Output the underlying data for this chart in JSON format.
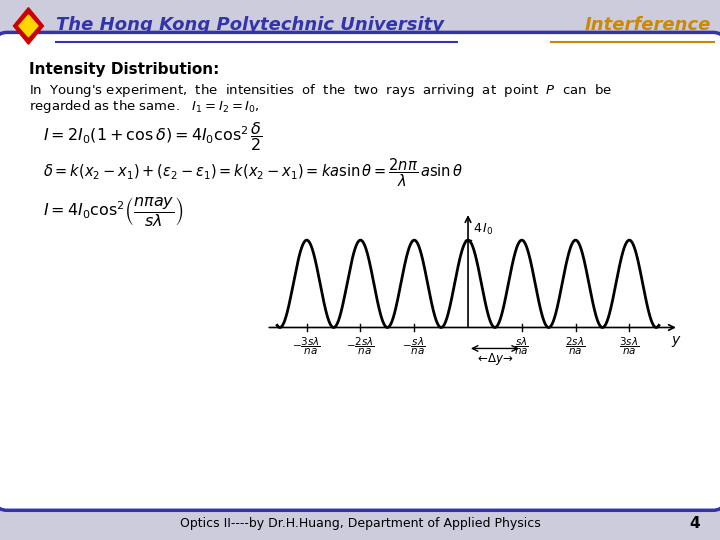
{
  "title_left": "The Hong Kong Polytechnic University",
  "title_right": "Interference",
  "title_left_color": "#3333AA",
  "title_right_color": "#CC8800",
  "bg_color": "#FFFFFF",
  "border_color": "#3333AA",
  "slide_bg": "#CCCCDD",
  "heading": "Intensity Distribution:",
  "footer": "Optics II----by Dr.H.Huang, Department of Applied Physics",
  "page_num": "4",
  "curve_color": "#000000",
  "curve_linewidth": 2.0
}
